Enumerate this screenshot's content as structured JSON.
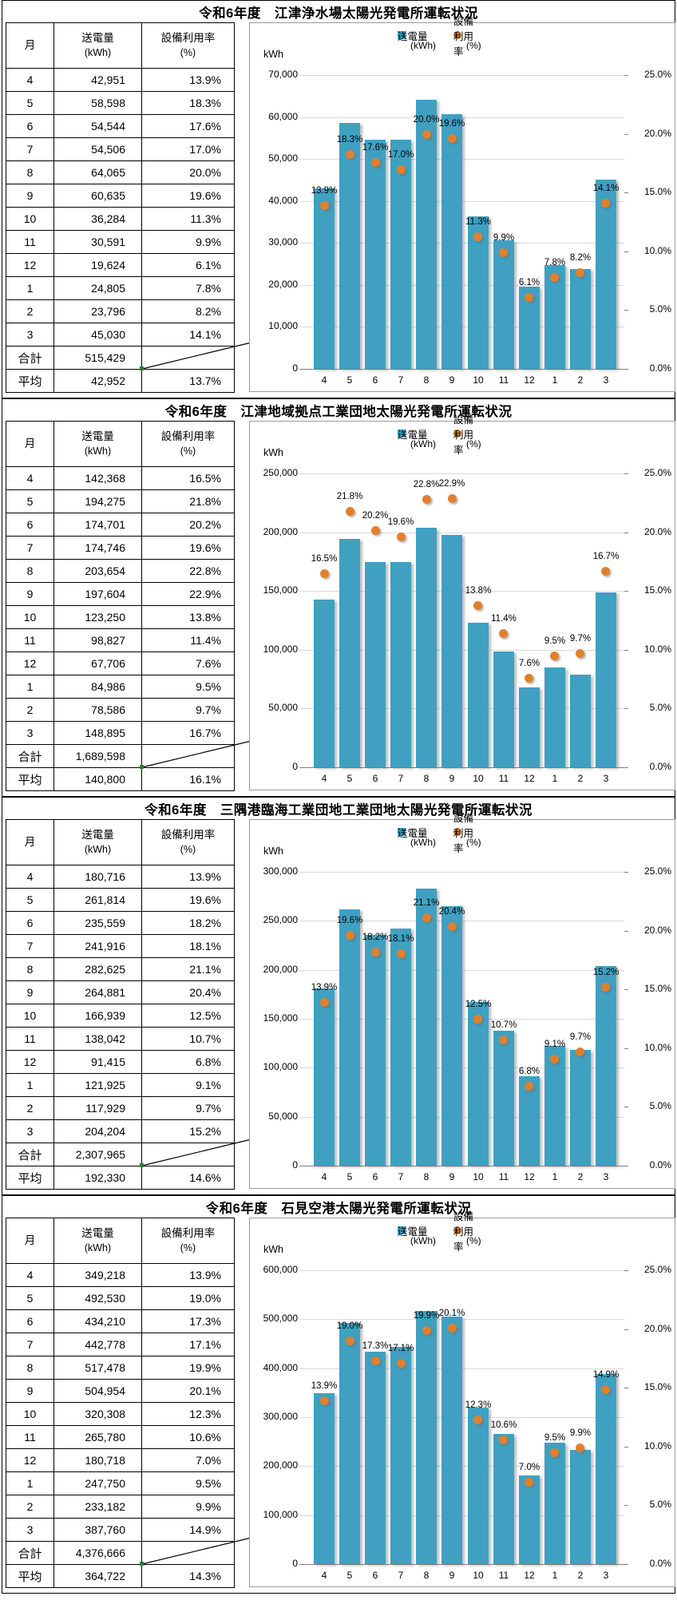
{
  "right_axis_shared": {
    "max": 25,
    "step": 5
  },
  "sections": [
    {
      "title": "令和6年度　江津浄水場太陽光発電所運転状況",
      "table": {
        "headers": {
          "month": "月",
          "energy": "送電量",
          "energy_unit": "(kWh)",
          "rate": "設備利用率",
          "rate_unit": "(%)"
        },
        "rows": [
          {
            "month": "4",
            "energy": "42,951",
            "rate": "13.9%"
          },
          {
            "month": "5",
            "energy": "58,598",
            "rate": "18.3%"
          },
          {
            "month": "6",
            "energy": "54,544",
            "rate": "17.6%"
          },
          {
            "month": "7",
            "energy": "54,506",
            "rate": "17.0%"
          },
          {
            "month": "8",
            "energy": "64,065",
            "rate": "20.0%"
          },
          {
            "month": "9",
            "energy": "60,635",
            "rate": "19.6%"
          },
          {
            "month": "10",
            "energy": "36,284",
            "rate": "11.3%"
          },
          {
            "month": "11",
            "energy": "30,591",
            "rate": "9.9%"
          },
          {
            "month": "12",
            "energy": "19,624",
            "rate": "6.1%"
          },
          {
            "month": "1",
            "energy": "24,805",
            "rate": "7.8%"
          },
          {
            "month": "2",
            "energy": "23,796",
            "rate": "8.2%"
          },
          {
            "month": "3",
            "energy": "45,030",
            "rate": "14.1%"
          }
        ],
        "total_label": "合計",
        "total_energy": "515,429",
        "avg_label": "平均",
        "avg_energy": "42,952",
        "avg_rate": "13.7%"
      },
      "chart_data": {
        "type": "bar+scatter",
        "categories": [
          "4",
          "5",
          "6",
          "7",
          "8",
          "9",
          "10",
          "11",
          "12",
          "1",
          "2",
          "3"
        ],
        "series": [
          {
            "name": "送電量",
            "unit": "(kWh)",
            "type": "bar",
            "color": "#3fa0c2",
            "values": [
              42951,
              58598,
              54544,
              54506,
              64065,
              60635,
              36284,
              30591,
              19624,
              24805,
              23796,
              45030
            ]
          },
          {
            "name": "設備利用率",
            "unit": "(%)",
            "type": "scatter",
            "color": "#e0802e",
            "values": [
              13.9,
              18.3,
              17.6,
              17.0,
              20.0,
              19.6,
              11.3,
              9.9,
              6.1,
              7.8,
              8.2,
              14.1
            ],
            "labels": [
              "13.9%",
              "18.3%",
              "17.6%",
              "17.0%",
              "20.0%",
              "19.6%",
              "11.3%",
              "9.9%",
              "6.1%",
              "7.8%",
              "8.2%",
              "14.1%"
            ]
          }
        ],
        "left_axis": {
          "label": "kWh",
          "max": 70000,
          "step": 10000,
          "tick_labels": [
            "70,000",
            "60,000",
            "50,000",
            "40,000",
            "30,000",
            "20,000",
            "10,000",
            "0"
          ]
        },
        "right_axis": {
          "max": 25,
          "step": 5,
          "tick_labels": [
            "25.0%",
            "20.0%",
            "15.0%",
            "10.0%",
            "5.0%",
            "0.0%"
          ]
        }
      }
    },
    {
      "title": "令和6年度　江津地域拠点工業団地太陽光発電所運転状況",
      "table": {
        "headers": {
          "month": "月",
          "energy": "送電量",
          "energy_unit": "(kWh)",
          "rate": "設備利用率",
          "rate_unit": "(%)"
        },
        "rows": [
          {
            "month": "4",
            "energy": "142,368",
            "rate": "16.5%"
          },
          {
            "month": "5",
            "energy": "194,275",
            "rate": "21.8%"
          },
          {
            "month": "6",
            "energy": "174,701",
            "rate": "20.2%"
          },
          {
            "month": "7",
            "energy": "174,746",
            "rate": "19.6%"
          },
          {
            "month": "8",
            "energy": "203,654",
            "rate": "22.8%"
          },
          {
            "month": "9",
            "energy": "197,604",
            "rate": "22.9%"
          },
          {
            "month": "10",
            "energy": "123,250",
            "rate": "13.8%"
          },
          {
            "month": "11",
            "energy": "98,827",
            "rate": "11.4%"
          },
          {
            "month": "12",
            "energy": "67,706",
            "rate": "7.6%"
          },
          {
            "month": "1",
            "energy": "84,986",
            "rate": "9.5%"
          },
          {
            "month": "2",
            "energy": "78,586",
            "rate": "9.7%"
          },
          {
            "month": "3",
            "energy": "148,895",
            "rate": "16.7%"
          }
        ],
        "total_label": "合計",
        "total_energy": "1,689,598",
        "avg_label": "平均",
        "avg_energy": "140,800",
        "avg_rate": "16.1%"
      },
      "chart_data": {
        "type": "bar+scatter",
        "categories": [
          "4",
          "5",
          "6",
          "7",
          "8",
          "9",
          "10",
          "11",
          "12",
          "1",
          "2",
          "3"
        ],
        "series": [
          {
            "name": "送電量",
            "unit": "(kWh)",
            "type": "bar",
            "color": "#3fa0c2",
            "values": [
              142368,
              194275,
              174701,
              174746,
              203654,
              197604,
              123250,
              98827,
              67706,
              84986,
              78586,
              148895
            ]
          },
          {
            "name": "設備利用率",
            "unit": "(%)",
            "type": "scatter",
            "color": "#e0802e",
            "values": [
              16.5,
              21.8,
              20.2,
              19.6,
              22.8,
              22.9,
              13.8,
              11.4,
              7.6,
              9.5,
              9.7,
              16.7
            ],
            "labels": [
              "16.5%",
              "21.8%",
              "20.2%",
              "19.6%",
              "22.8%",
              "22.9%",
              "13.8%",
              "11.4%",
              "7.6%",
              "9.5%",
              "9.7%",
              "16.7%"
            ]
          }
        ],
        "left_axis": {
          "label": "kWh",
          "max": 250000,
          "step": 50000,
          "tick_labels": [
            "250,000",
            "200,000",
            "150,000",
            "100,000",
            "50,000",
            "0"
          ]
        },
        "right_axis": {
          "max": 25,
          "step": 5,
          "tick_labels": [
            "25.0%",
            "20.0%",
            "15.0%",
            "10.0%",
            "5.0%",
            "0.0%"
          ]
        }
      }
    },
    {
      "title": "令和6年度　三隅港臨海工業団地工業団地太陽光発電所運転状況",
      "table": {
        "headers": {
          "month": "月",
          "energy": "送電量",
          "energy_unit": "(kWh)",
          "rate": "設備利用率",
          "rate_unit": "(%)"
        },
        "rows": [
          {
            "month": "4",
            "energy": "180,716",
            "rate": "13.9%"
          },
          {
            "month": "5",
            "energy": "261,814",
            "rate": "19.6%"
          },
          {
            "month": "6",
            "energy": "235,559",
            "rate": "18.2%"
          },
          {
            "month": "7",
            "energy": "241,916",
            "rate": "18.1%"
          },
          {
            "month": "8",
            "energy": "282,625",
            "rate": "21.1%"
          },
          {
            "month": "9",
            "energy": "264,881",
            "rate": "20.4%"
          },
          {
            "month": "10",
            "energy": "166,939",
            "rate": "12.5%"
          },
          {
            "month": "11",
            "energy": "138,042",
            "rate": "10.7%"
          },
          {
            "month": "12",
            "energy": "91,415",
            "rate": "6.8%"
          },
          {
            "month": "1",
            "energy": "121,925",
            "rate": "9.1%"
          },
          {
            "month": "2",
            "energy": "117,929",
            "rate": "9.7%"
          },
          {
            "month": "3",
            "energy": "204,204",
            "rate": "15.2%"
          }
        ],
        "total_label": "合計",
        "total_energy": "2,307,965",
        "avg_label": "平均",
        "avg_energy": "192,330",
        "avg_rate": "14.6%"
      },
      "chart_data": {
        "type": "bar+scatter",
        "categories": [
          "4",
          "5",
          "6",
          "7",
          "8",
          "9",
          "10",
          "11",
          "12",
          "1",
          "2",
          "3"
        ],
        "series": [
          {
            "name": "送電量",
            "unit": "(kWh)",
            "type": "bar",
            "color": "#3fa0c2",
            "values": [
              180716,
              261814,
              235559,
              241916,
              282625,
              264881,
              166939,
              138042,
              91415,
              121925,
              117929,
              204204
            ]
          },
          {
            "name": "設備利用率",
            "unit": "(%)",
            "type": "scatter",
            "color": "#e0802e",
            "values": [
              13.9,
              19.6,
              18.2,
              18.1,
              21.1,
              20.4,
              12.5,
              10.7,
              6.8,
              9.1,
              9.7,
              15.2
            ],
            "labels": [
              "13.9%",
              "19.6%",
              "18.2%",
              "18.1%",
              "21.1%",
              "20.4%",
              "12.5%",
              "10.7%",
              "6.8%",
              "9.1%",
              "9.7%",
              "15.2%"
            ]
          }
        ],
        "left_axis": {
          "label": "kWh",
          "max": 300000,
          "step": 50000,
          "tick_labels": [
            "300,000",
            "250,000",
            "200,000",
            "150,000",
            "100,000",
            "50,000",
            "0"
          ]
        },
        "right_axis": {
          "max": 25,
          "step": 5,
          "tick_labels": [
            "25.0%",
            "20.0%",
            "15.0%",
            "10.0%",
            "5.0%",
            "0.0%"
          ]
        }
      }
    },
    {
      "title": "令和6年度　石見空港太陽光発電所運転状況",
      "table": {
        "headers": {
          "month": "月",
          "energy": "送電量",
          "energy_unit": "(kWh)",
          "rate": "設備利用率",
          "rate_unit": "(%)"
        },
        "rows": [
          {
            "month": "4",
            "energy": "349,218",
            "rate": "13.9%"
          },
          {
            "month": "5",
            "energy": "492,530",
            "rate": "19.0%"
          },
          {
            "month": "6",
            "energy": "434,210",
            "rate": "17.3%"
          },
          {
            "month": "7",
            "energy": "442,778",
            "rate": "17.1%"
          },
          {
            "month": "8",
            "energy": "517,478",
            "rate": "19.9%"
          },
          {
            "month": "9",
            "energy": "504,954",
            "rate": "20.1%"
          },
          {
            "month": "10",
            "energy": "320,308",
            "rate": "12.3%"
          },
          {
            "month": "11",
            "energy": "265,780",
            "rate": "10.6%"
          },
          {
            "month": "12",
            "energy": "180,718",
            "rate": "7.0%"
          },
          {
            "month": "1",
            "energy": "247,750",
            "rate": "9.5%"
          },
          {
            "month": "2",
            "energy": "233,182",
            "rate": "9.9%"
          },
          {
            "month": "3",
            "energy": "387,760",
            "rate": "14.9%"
          }
        ],
        "total_label": "合計",
        "total_energy": "4,376,666",
        "avg_label": "平均",
        "avg_energy": "364,722",
        "avg_rate": "14.3%"
      },
      "chart_data": {
        "type": "bar+scatter",
        "categories": [
          "4",
          "5",
          "6",
          "7",
          "8",
          "9",
          "10",
          "11",
          "12",
          "1",
          "2",
          "3"
        ],
        "series": [
          {
            "name": "送電量",
            "unit": "(kWh)",
            "type": "bar",
            "color": "#3fa0c2",
            "values": [
              349218,
              492530,
              434210,
              442778,
              517478,
              504954,
              320308,
              265780,
              180718,
              247750,
              233182,
              387760
            ]
          },
          {
            "name": "設備利用率",
            "unit": "(%)",
            "type": "scatter",
            "color": "#e0802e",
            "values": [
              13.9,
              19.0,
              17.3,
              17.1,
              19.9,
              20.1,
              12.3,
              10.6,
              7.0,
              9.5,
              9.9,
              14.9
            ],
            "labels": [
              "13.9%",
              "19.0%",
              "17.3%",
              "17.1%",
              "19.9%",
              "20.1%",
              "12.3%",
              "10.6%",
              "7.0%",
              "9.5%",
              "9.9%",
              "14.9%"
            ]
          }
        ],
        "left_axis": {
          "label": "kWh",
          "max": 600000,
          "step": 100000,
          "tick_labels": [
            "600,000",
            "500,000",
            "400,000",
            "300,000",
            "200,000",
            "100,000",
            "0"
          ]
        },
        "right_axis": {
          "max": 25,
          "step": 5,
          "tick_labels": [
            "25.0%",
            "20.0%",
            "15.0%",
            "10.0%",
            "5.0%",
            "0.0%"
          ]
        }
      }
    }
  ]
}
